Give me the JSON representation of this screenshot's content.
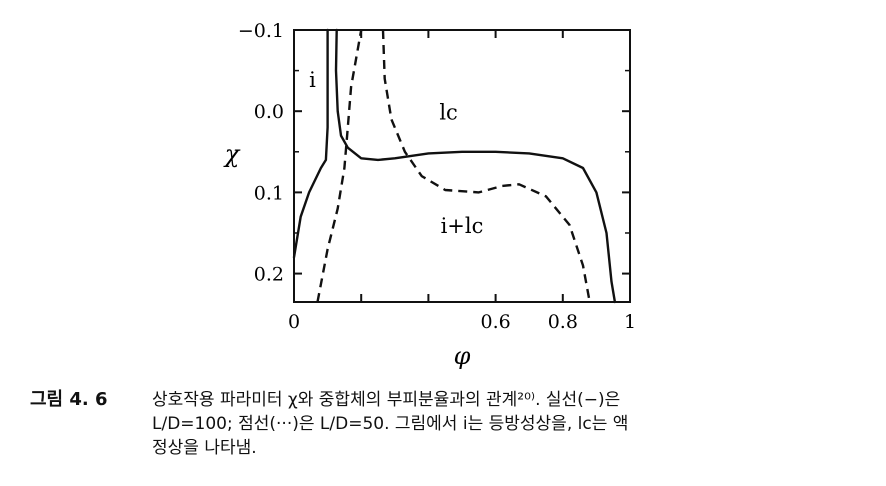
{
  "chart_data": {
    "type": "line",
    "xlabel": "φ",
    "ylabel": "χ",
    "xlim": [
      0,
      1
    ],
    "ylim": [
      -0.1,
      0.235
    ],
    "y_inverted": true,
    "x_ticks": [
      {
        "value": 0,
        "label": "0"
      },
      {
        "value": 0.6,
        "label": "0.6"
      },
      {
        "value": 0.8,
        "label": "0.8"
      },
      {
        "value": 1,
        "label": "1"
      }
    ],
    "y_ticks": [
      {
        "value": -0.1,
        "label": "−0.1"
      },
      {
        "value": 0.0,
        "label": "0.0"
      },
      {
        "value": 0.1,
        "label": "0.1"
      },
      {
        "value": 0.2,
        "label": "0.2"
      }
    ],
    "annotations": [
      {
        "text": "i",
        "x": 0.055,
        "y": -0.03
      },
      {
        "text": "lc",
        "x": 0.46,
        "y": 0.01
      },
      {
        "text": "i+lc",
        "x": 0.5,
        "y": 0.15
      }
    ],
    "series": [
      {
        "style": "solid",
        "segments": [
          [
            [
              0.0,
              0.18
            ],
            [
              0.02,
              0.13
            ],
            [
              0.045,
              0.1
            ],
            [
              0.08,
              0.07
            ],
            [
              0.095,
              0.06
            ],
            [
              0.1,
              0.02
            ],
            [
              0.1,
              -0.1
            ]
          ],
          [
            [
              0.127,
              -0.1
            ],
            [
              0.125,
              -0.05
            ],
            [
              0.13,
              0.0
            ],
            [
              0.14,
              0.03
            ],
            [
              0.16,
              0.045
            ],
            [
              0.2,
              0.058
            ],
            [
              0.25,
              0.06
            ],
            [
              0.3,
              0.058
            ],
            [
              0.4,
              0.052
            ],
            [
              0.5,
              0.05
            ],
            [
              0.6,
              0.05
            ],
            [
              0.7,
              0.052
            ],
            [
              0.8,
              0.058
            ],
            [
              0.86,
              0.07
            ],
            [
              0.9,
              0.1
            ],
            [
              0.93,
              0.15
            ],
            [
              0.945,
              0.21
            ],
            [
              0.955,
              0.235
            ]
          ]
        ]
      },
      {
        "style": "dashed",
        "segments": [
          [
            [
              0.07,
              0.235
            ],
            [
              0.1,
              0.17
            ],
            [
              0.13,
              0.12
            ],
            [
              0.15,
              0.07
            ],
            [
              0.16,
              0.02
            ],
            [
              0.17,
              -0.03
            ],
            [
              0.2,
              -0.1
            ]
          ],
          [
            [
              0.265,
              -0.1
            ],
            [
              0.27,
              -0.04
            ],
            [
              0.29,
              0.01
            ],
            [
              0.33,
              0.05
            ],
            [
              0.38,
              0.08
            ],
            [
              0.45,
              0.097
            ],
            [
              0.55,
              0.1
            ],
            [
              0.62,
              0.092
            ],
            [
              0.67,
              0.09
            ],
            [
              0.75,
              0.105
            ],
            [
              0.82,
              0.14
            ],
            [
              0.86,
              0.19
            ],
            [
              0.88,
              0.235
            ]
          ]
        ]
      }
    ]
  },
  "caption": {
    "label": "그림 4. 6",
    "line1": "상호작용 파라미터 χ와 중합체의 부피분율과의 관계²⁰⁾. 실선(−)은",
    "line2": "L/D=100; 점선(···)은 L/D=50. 그림에서 i는 등방성상을, lc는 액",
    "line3": "정상을 나타냄."
  }
}
